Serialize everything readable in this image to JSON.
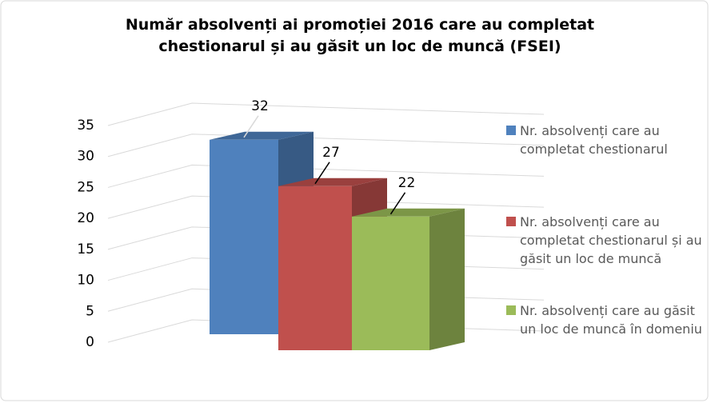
{
  "chart_data": {
    "type": "bar3d",
    "title": "Număr absolvenți ai promoției 2016 care au completat chestionarul și au găsit un loc de muncă (FSEI)",
    "categories": [
      null
    ],
    "series": [
      {
        "name": "Nr. absolvenți care au completat chestionarul",
        "color": "#4f81bd",
        "values": [
          32
        ]
      },
      {
        "name": "Nr. absolvenți care au completat chestionarul și au găsit un loc de muncă",
        "color": "#c0504d",
        "values": [
          27
        ]
      },
      {
        "name": "Nr. absolvenți care au găsit un loc de muncă în domeniu",
        "color": "#9bbb59",
        "values": [
          22
        ]
      }
    ],
    "ylim": [
      0,
      35
    ],
    "yticks": [
      0,
      5,
      10,
      15,
      20,
      25,
      30,
      35
    ],
    "grid": true,
    "legend": "right"
  }
}
